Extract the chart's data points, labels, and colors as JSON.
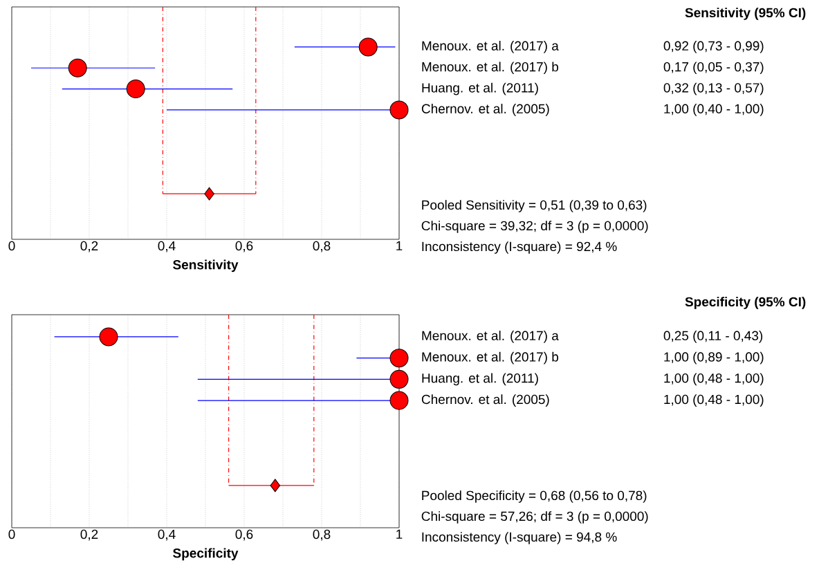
{
  "chart_data": [
    {
      "type": "scatter",
      "orientation": "horizontal",
      "xlabel": "Sensitivity",
      "categories": [
        "Menoux. et al. (2017) a",
        "Menoux. et al. (2017) b",
        "Huang. et al. (2011)",
        "Chernov. et al. (2005)",
        null,
        null,
        null,
        null
      ],
      "series": [
        {
          "color": "#ff0000",
          "marker": "circle",
          "values": [
            0.92,
            0.17,
            0.32,
            1.0,
            null,
            null,
            null,
            null
          ],
          "errors": [
            [
              0.73,
              0.99
            ],
            [
              0.05,
              0.37
            ],
            [
              0.13,
              0.57
            ],
            [
              0.4,
              1.0
            ],
            null,
            null,
            null,
            null
          ],
          "value_labels": [
            "0,92 (0,73 - 0,99)",
            "0,17 (0,05 - 0,37)",
            "0,32 (0,13 - 0,57)",
            "1,00 (0,40 - 1,00)",
            null,
            null,
            null,
            null
          ]
        },
        {
          "color": "#ff0000",
          "marker": "diamond",
          "values": [
            null,
            null,
            null,
            null,
            null,
            null,
            null,
            0.51
          ],
          "errors": [
            null,
            null,
            null,
            null,
            null,
            null,
            null,
            [
              0.39,
              0.63
            ]
          ]
        }
      ],
      "ref_lines": [
        {
          "axis": "x",
          "value": 0.39,
          "color": "#ff0000",
          "line_style": "dashed"
        },
        {
          "axis": "x",
          "value": 0.63,
          "color": "#ff0000",
          "line_style": "dashed"
        }
      ],
      "xlim": [
        0,
        1
      ],
      "xticks": [
        0,
        {
          "value": 0.1,
          "label": null
        },
        {
          "value": 0.2,
          "label": "0,2"
        },
        {
          "value": 0.3,
          "label": null
        },
        {
          "value": 0.4,
          "label": "0,4"
        },
        {
          "value": 0.5,
          "label": null
        },
        {
          "value": 0.6,
          "label": "0,6"
        },
        {
          "value": 0.7,
          "label": null
        },
        {
          "value": 0.8,
          "label": "0,8"
        },
        {
          "value": 0.9,
          "label": null
        },
        1
      ],
      "grid": "x",
      "annotations": [
        "Sensitivity (95% CI)",
        "Pooled Sensitivity = 0,51 (0,39 to 0,63)",
        "Chi-square = 39,32; df =  3 (p = 0,0000)",
        "Inconsistency (I-square) = 92,4 %"
      ]
    },
    {
      "type": "scatter",
      "orientation": "horizontal",
      "xlabel": "Specificity",
      "categories": [
        "Menoux. et al. (2017) a",
        "Menoux. et al. (2017) b",
        "Huang. et al. (2011)",
        "Chernov. et al. (2005)",
        null,
        null,
        null,
        null
      ],
      "series": [
        {
          "color": "#ff0000",
          "marker": "circle",
          "values": [
            0.25,
            1.0,
            1.0,
            1.0,
            null,
            null,
            null,
            null
          ],
          "errors": [
            [
              0.11,
              0.43
            ],
            [
              0.89,
              1.0
            ],
            [
              0.48,
              1.0
            ],
            [
              0.48,
              1.0
            ],
            null,
            null,
            null,
            null
          ],
          "value_labels": [
            "0,25 (0,11 - 0,43)",
            "1,00 (0,89 - 1,00)",
            "1,00 (0,48 - 1,00)",
            "1,00 (0,48 - 1,00)",
            null,
            null,
            null,
            null
          ]
        },
        {
          "color": "#ff0000",
          "marker": "diamond",
          "values": [
            null,
            null,
            null,
            null,
            null,
            null,
            null,
            0.68
          ],
          "errors": [
            null,
            null,
            null,
            null,
            null,
            null,
            null,
            [
              0.56,
              0.78
            ]
          ]
        }
      ],
      "ref_lines": [
        {
          "axis": "x",
          "value": 0.56,
          "color": "#ff0000",
          "line_style": "dashed"
        },
        {
          "axis": "x",
          "value": 0.78,
          "color": "#ff0000",
          "line_style": "dashed"
        }
      ],
      "xlim": [
        0,
        1
      ],
      "xticks": [
        0,
        {
          "value": 0.1,
          "label": null
        },
        {
          "value": 0.2,
          "label": "0,2"
        },
        {
          "value": 0.3,
          "label": null
        },
        {
          "value": 0.4,
          "label": "0,4"
        },
        {
          "value": 0.5,
          "label": null
        },
        {
          "value": 0.6,
          "label": "0,6"
        },
        {
          "value": 0.7,
          "label": null
        },
        {
          "value": 0.8,
          "label": "0,8"
        },
        {
          "value": 0.9,
          "label": null
        },
        1
      ],
      "grid": "x",
      "annotations": [
        "Specificity (95% CI)",
        "Pooled Specificity = 0,68 (0,56 to 0,78)",
        "Chi-square = 57,26; df =  3 (p = 0,0000)",
        "Inconsistency (I-square) = 94,8 %"
      ]
    }
  ]
}
